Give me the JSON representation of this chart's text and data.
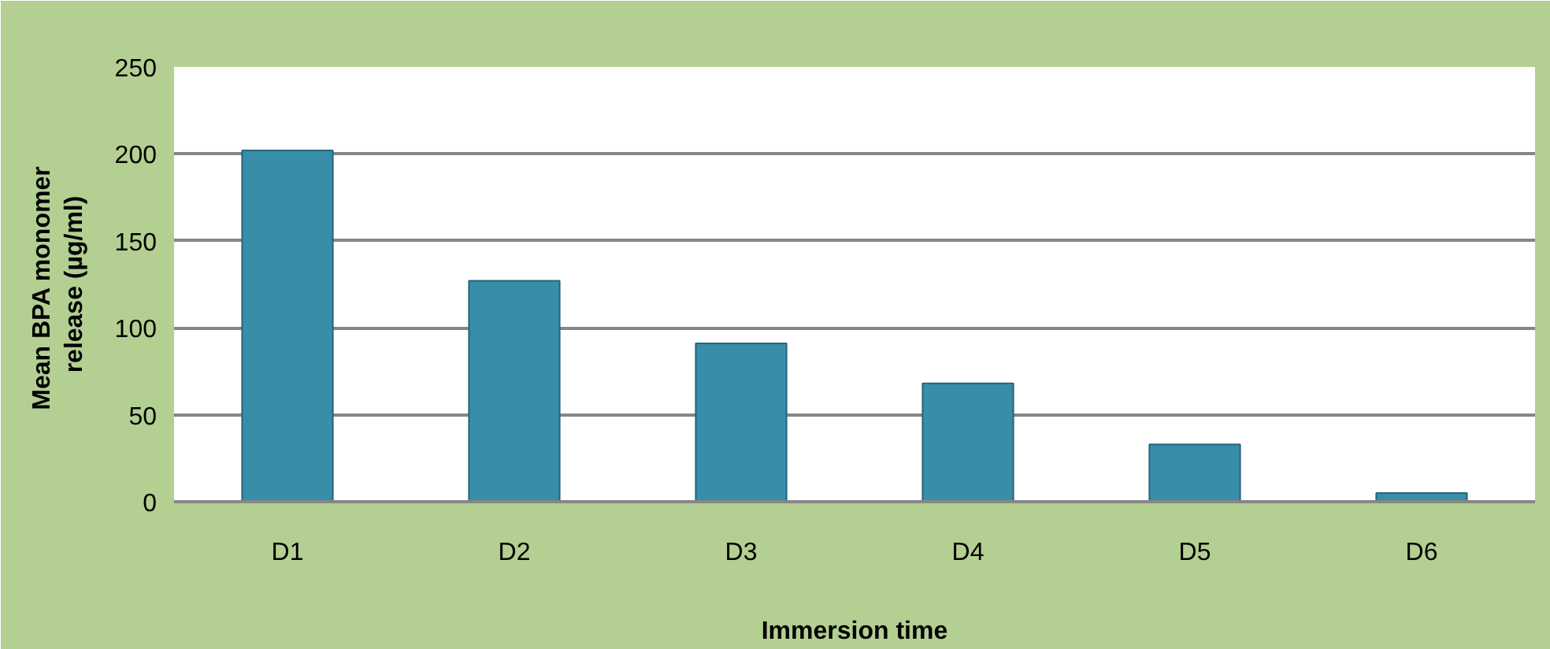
{
  "chart_data": {
    "type": "bar",
    "xlabel": "Immersion time",
    "ylabel": "Mean  BPA monomer release (µg/ml)",
    "categories": [
      "D1",
      "D2",
      "D3",
      "D4",
      "D5",
      "D6"
    ],
    "values": [
      202,
      127,
      91,
      68,
      33,
      5
    ],
    "color": "#388ea8",
    "ylim": [
      0,
      250
    ],
    "yticks": [
      0,
      50,
      100,
      150,
      200,
      250
    ],
    "grid": "y"
  }
}
